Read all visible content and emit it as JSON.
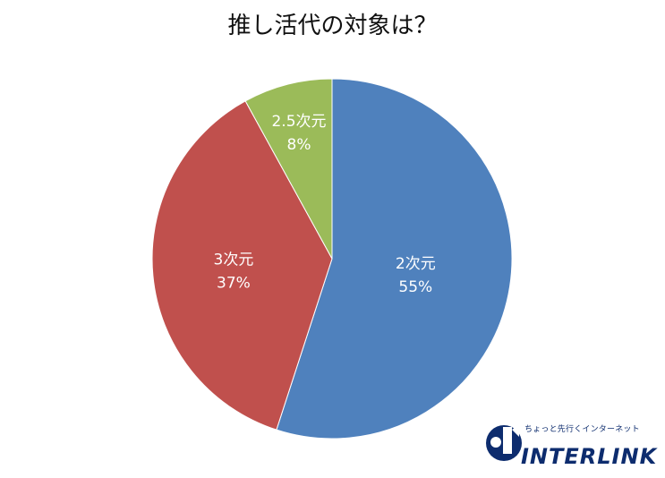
{
  "chart_data": {
    "type": "pie",
    "title": "推し活代の対象は？",
    "slices": [
      {
        "label": "2次元",
        "value": 55,
        "value_label": "55%",
        "color": "#4f81bd"
      },
      {
        "label": "3次元",
        "value": 37,
        "value_label": "37%",
        "color": "#c0504d"
      },
      {
        "label": "2.5次元",
        "value": 8,
        "value_label": "8%",
        "color": "#9bbb59"
      }
    ],
    "start": "top, clockwise",
    "legend": "none"
  },
  "logo": {
    "tagline": "ちょっと先行くインターネット",
    "wordmark": "INTERLINK",
    "color": "#0d2c6e"
  }
}
